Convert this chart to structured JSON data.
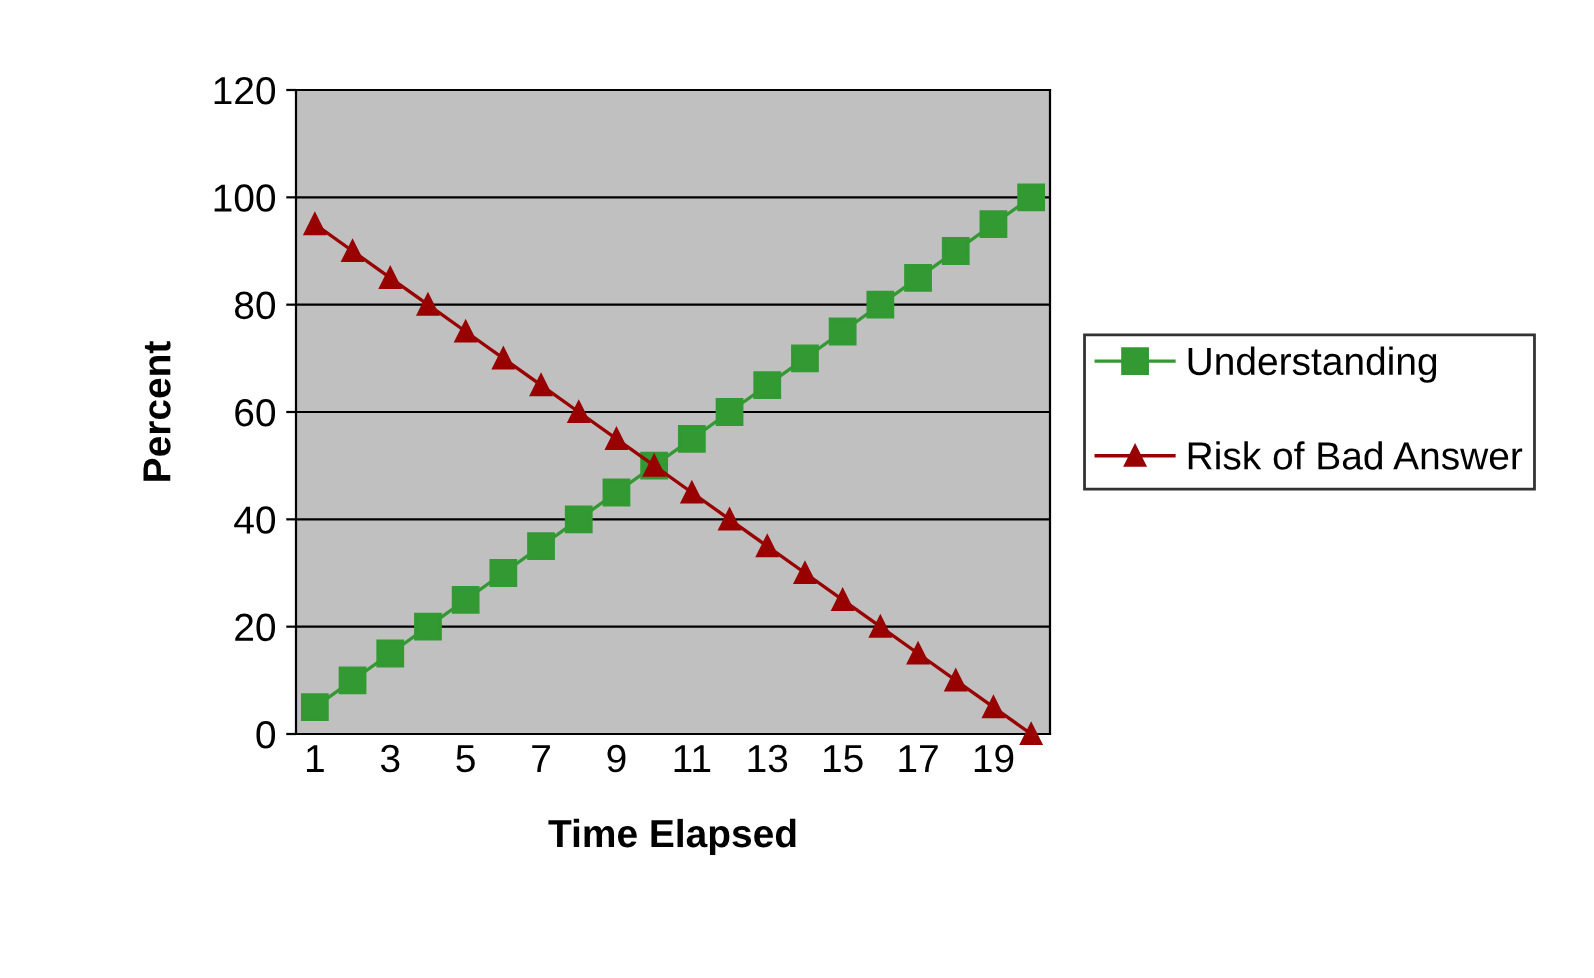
{
  "chart_data": {
    "type": "line",
    "xlabel": "Time Elapsed",
    "ylabel": "Percent",
    "categories": [
      "1",
      null,
      "3",
      null,
      "5",
      null,
      "7",
      null,
      "9",
      null,
      "11",
      null,
      "13",
      null,
      "15",
      null,
      "17",
      null,
      "19",
      null
    ],
    "series": [
      {
        "name": "Understanding",
        "color": "#339933",
        "marker": "square",
        "values": [
          5,
          10,
          15,
          20,
          25,
          30,
          35,
          40,
          45,
          50,
          55,
          60,
          65,
          70,
          75,
          80,
          85,
          90,
          95,
          100
        ]
      },
      {
        "name": "Risk of Bad Answer",
        "color": "#990000",
        "marker": "triangle",
        "values": [
          95,
          90,
          85,
          80,
          75,
          70,
          65,
          60,
          55,
          50,
          45,
          40,
          35,
          30,
          25,
          20,
          15,
          10,
          5,
          0
        ]
      }
    ],
    "ylim": [
      0,
      120
    ],
    "yticks": [
      0,
      20,
      40,
      60,
      80,
      100,
      120
    ],
    "grid": "y",
    "legend": "right",
    "line_style": "solid"
  }
}
